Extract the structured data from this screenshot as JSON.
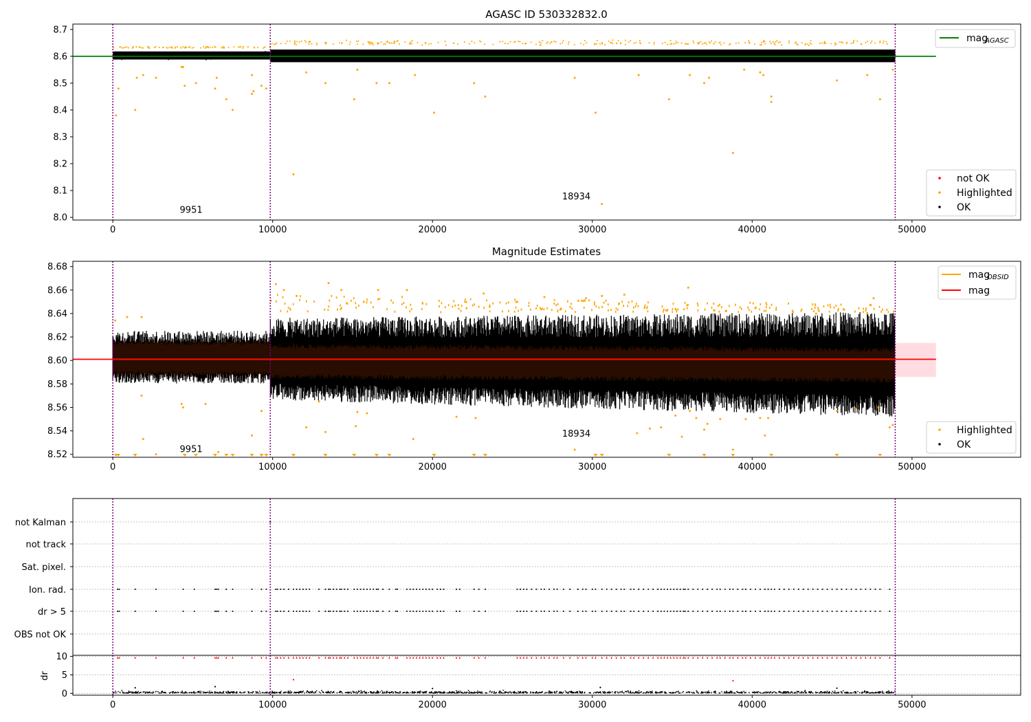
{
  "figure": {
    "colors": {
      "ok": "#000000",
      "highlighted": "#ffa500",
      "not_ok": "#ff0000",
      "agasc_line": "#008000",
      "mag_line": "#ff0000",
      "band_fill": "#ffc0cb",
      "brown": "#2a0e00",
      "purple": "#800080"
    }
  },
  "chart_data": [
    {
      "id": "agasc",
      "type": "scatter",
      "title": "AGASC ID 530332832.0",
      "xlim": [
        -2500,
        56800
      ],
      "ylim": [
        7.99,
        8.72
      ],
      "x_ticks": [
        0,
        10000,
        20000,
        30000,
        40000,
        50000
      ],
      "x_tick_labels": [
        "0",
        "10000",
        "20000",
        "30000",
        "40000",
        "50000"
      ],
      "y_ticks": [
        8.0,
        8.1,
        8.2,
        8.3,
        8.4,
        8.5,
        8.6,
        8.7
      ],
      "y_tick_labels": [
        "8.0",
        "8.1",
        "8.2",
        "8.3",
        "8.4",
        "8.5",
        "8.6",
        "8.7"
      ],
      "obsid_boundaries": [
        0,
        9850,
        48950
      ],
      "annotations": [
        {
          "text": "9951",
          "x": 4900,
          "y": 8.017
        },
        {
          "text": "18934",
          "x": 29000,
          "y": 8.067
        }
      ],
      "reference_line": {
        "y": 8.6,
        "x_range": [
          -2500,
          51500
        ]
      },
      "legend_upper": {
        "label": "mag",
        "subscript": "AGASC",
        "color": "#008000"
      },
      "legend_lower": [
        {
          "label": "not OK",
          "color": "#ff0000"
        },
        {
          "label": "Highlighted",
          "color": "#ffa500"
        },
        {
          "label": "OK",
          "color": "#000000"
        }
      ],
      "series": [
        {
          "name": "Highlighted",
          "color": "#ffa500",
          "points": [
            [
              200,
              8.38
            ],
            [
              350,
              8.48
            ],
            [
              1400,
              8.4
            ],
            [
              1500,
              8.52
            ],
            [
              1900,
              8.53
            ],
            [
              2700,
              8.52
            ],
            [
              4300,
              8.56
            ],
            [
              4400,
              8.56
            ],
            [
              4500,
              8.49
            ],
            [
              5200,
              8.5
            ],
            [
              6400,
              8.48
            ],
            [
              6500,
              8.52
            ],
            [
              7100,
              8.44
            ],
            [
              7500,
              8.4
            ],
            [
              8700,
              8.46
            ],
            [
              8800,
              8.47
            ],
            [
              8700,
              8.53
            ],
            [
              9300,
              8.49
            ],
            [
              9600,
              8.48
            ],
            [
              11300,
              8.16
            ],
            [
              12100,
              8.54
            ],
            [
              13300,
              8.5
            ],
            [
              15100,
              8.44
            ],
            [
              15300,
              8.55
            ],
            [
              16500,
              8.5
            ],
            [
              17300,
              8.5
            ],
            [
              18900,
              8.53
            ],
            [
              20100,
              8.39
            ],
            [
              22600,
              8.5
            ],
            [
              23300,
              8.45
            ],
            [
              28900,
              8.52
            ],
            [
              30200,
              8.39
            ],
            [
              30600,
              8.05
            ],
            [
              32900,
              8.53
            ],
            [
              34800,
              8.44
            ],
            [
              36100,
              8.53
            ],
            [
              37000,
              8.5
            ],
            [
              37300,
              8.52
            ],
            [
              38800,
              8.24
            ],
            [
              39500,
              8.55
            ],
            [
              40500,
              8.54
            ],
            [
              40700,
              8.53
            ],
            [
              41200,
              8.45
            ],
            [
              41200,
              8.43
            ],
            [
              45300,
              8.51
            ],
            [
              47200,
              8.53
            ],
            [
              48000,
              8.44
            ],
            [
              48800,
              8.55
            ]
          ]
        }
      ]
    },
    {
      "id": "estimates",
      "type": "scatter",
      "title": "Magnitude Estimates",
      "xlim": [
        -2500,
        56800
      ],
      "ylim": [
        8.5175,
        8.6845
      ],
      "x_ticks": [
        0,
        10000,
        20000,
        30000,
        40000,
        50000
      ],
      "x_tick_labels": [
        "0",
        "10000",
        "20000",
        "30000",
        "40000",
        "50000"
      ],
      "y_ticks": [
        8.52,
        8.54,
        8.56,
        8.58,
        8.6,
        8.62,
        8.64,
        8.66,
        8.68
      ],
      "y_tick_labels": [
        "8.52",
        "8.54",
        "8.56",
        "8.58",
        "8.60",
        "8.62",
        "8.64",
        "8.66",
        "8.68"
      ],
      "obsid_boundaries": [
        0,
        9850,
        48950
      ],
      "annotations": [
        {
          "text": "9951",
          "x": 4900,
          "y": 8.522
        },
        {
          "text": "18934",
          "x": 29000,
          "y": 8.535
        }
      ],
      "mag_line": {
        "y": 8.601,
        "x_range": [
          -2500,
          51500
        ]
      },
      "mag_band": {
        "y_low": 8.586,
        "y_high": 8.615
      },
      "legend_upper": [
        {
          "label": "mag",
          "subscript": "OBSID",
          "color": "#ffa500"
        },
        {
          "label": "mag",
          "subscript": "",
          "color": "#ff0000"
        }
      ],
      "legend_lower": [
        {
          "label": "Highlighted",
          "color": "#ffa500"
        },
        {
          "label": "OK",
          "color": "#000000"
        }
      ],
      "series": [
        {
          "name": "Highlighted",
          "color": "#ffa500",
          "points": [
            [
              150,
              8.634
            ],
            [
              900,
              8.637
            ],
            [
              1800,
              8.637
            ],
            [
              4300,
              8.563
            ],
            [
              4400,
              8.56
            ],
            [
              1900,
              8.533
            ],
            [
              1800,
              8.57
            ],
            [
              2700,
              8.52
            ],
            [
              5800,
              8.563
            ],
            [
              6600,
              8.522
            ],
            [
              8700,
              8.536
            ],
            [
              9300,
              8.557
            ],
            [
              10200,
              8.665
            ],
            [
              10700,
              8.66
            ],
            [
              11500,
              8.655
            ],
            [
              12100,
              8.543
            ],
            [
              12900,
              8.565
            ],
            [
              13300,
              8.539
            ],
            [
              13500,
              8.666
            ],
            [
              14300,
              8.66
            ],
            [
              15200,
              8.544
            ],
            [
              15300,
              8.556
            ],
            [
              15700,
              8.65
            ],
            [
              15900,
              8.555
            ],
            [
              16600,
              8.66
            ],
            [
              18400,
              8.66
            ],
            [
              18800,
              8.533
            ],
            [
              21500,
              8.552
            ],
            [
              22700,
              8.551
            ],
            [
              23200,
              8.657
            ],
            [
              25300,
              8.65
            ],
            [
              27000,
              8.654
            ],
            [
              28900,
              8.524
            ],
            [
              29600,
              8.653
            ],
            [
              30600,
              8.655
            ],
            [
              32000,
              8.656
            ],
            [
              32800,
              8.538
            ],
            [
              33600,
              8.542
            ],
            [
              34300,
              8.543
            ],
            [
              35200,
              8.553
            ],
            [
              35600,
              8.535
            ],
            [
              36000,
              8.662
            ],
            [
              36100,
              8.557
            ],
            [
              36500,
              8.551
            ],
            [
              37000,
              8.541
            ],
            [
              37200,
              8.546
            ],
            [
              38000,
              8.55
            ],
            [
              38800,
              8.524
            ],
            [
              39600,
              8.55
            ],
            [
              40500,
              8.551
            ],
            [
              40800,
              8.536
            ],
            [
              45300,
              8.557
            ],
            [
              46400,
              8.56
            ],
            [
              47200,
              8.64
            ],
            [
              47600,
              8.653
            ],
            [
              48600,
              8.543
            ],
            [
              48800,
              8.545
            ],
            [
              47900,
              8.56
            ],
            [
              41000,
              8.551
            ],
            [
              44000,
              8.64
            ]
          ]
        }
      ],
      "clipped_markers_x": [
        200,
        350,
        1400,
        4500,
        5200,
        6400,
        7100,
        7500,
        8700,
        9300,
        9600,
        11300,
        13300,
        15100,
        16500,
        17300,
        20100,
        22600,
        23300,
        30200,
        30600,
        34800,
        37000,
        38800,
        41200,
        45300,
        48000
      ]
    },
    {
      "id": "flags",
      "type": "scatter",
      "categories": [
        "not Kalman",
        "not track",
        "Sat. pixel.",
        "Ion. rad.",
        "dr > 5",
        "OBS not OK"
      ],
      "xlim": [
        -2500,
        56800
      ],
      "x_ticks": [
        0,
        10000,
        20000,
        30000,
        40000,
        50000
      ],
      "x_tick_labels": [
        "0",
        "10000",
        "20000",
        "30000",
        "40000",
        "50000"
      ],
      "obsid_boundaries": [
        0,
        9850,
        48950
      ],
      "rows": {
        "not Kalman": [
          9850
        ],
        "Ion. rad.": "flag_x",
        "dr > 5": "flag_x"
      }
    },
    {
      "id": "dr",
      "type": "scatter",
      "ylabel": "dr",
      "ylim": [
        -0.5,
        10.3
      ],
      "y_ticks": [
        0,
        5,
        10
      ],
      "y_tick_labels": [
        "0",
        "5",
        "10"
      ],
      "xlim": [
        -2500,
        56800
      ],
      "x_ticks": [
        0,
        10000,
        20000,
        30000,
        40000,
        50000
      ],
      "x_tick_labels": [
        "0",
        "10000",
        "20000",
        "30000",
        "40000",
        "50000"
      ],
      "obsid_boundaries": [
        0,
        9850,
        48950
      ],
      "outliers_dr": [
        [
          11300,
          3.7
        ],
        [
          38800,
          3.4
        ],
        [
          1400,
          1.5
        ],
        [
          6400,
          1.8
        ],
        [
          30500,
          1.6
        ],
        [
          20000,
          1.3
        ],
        [
          45300,
          1.4
        ]
      ],
      "clipped_x": "flag_x"
    }
  ],
  "flag_x": [
    300,
    400,
    1400,
    2700,
    4400,
    5100,
    6400,
    6500,
    6600,
    7100,
    7500,
    8700,
    9300,
    9600,
    10200,
    10300,
    10500,
    10700,
    11000,
    11300,
    11500,
    11700,
    11900,
    12100,
    12300,
    12900,
    13300,
    13500,
    13600,
    13800,
    14000,
    14200,
    14300,
    14500,
    14700,
    15100,
    15300,
    15500,
    15700,
    15900,
    16100,
    16300,
    16500,
    16600,
    16900,
    17300,
    17700,
    17800,
    18400,
    18600,
    18800,
    19000,
    19200,
    19400,
    19600,
    19800,
    20000,
    20300,
    20500,
    20700,
    21500,
    21700,
    22600,
    22900,
    23300,
    25300,
    25500,
    25700,
    25900,
    26200,
    26500,
    26800,
    27000,
    27300,
    27600,
    27800,
    28200,
    28600,
    29100,
    29400,
    29600,
    30000,
    30200,
    30600,
    30900,
    31200,
    31500,
    31800,
    32000,
    32400,
    32600,
    32900,
    33200,
    33500,
    33800,
    34100,
    34300,
    34500,
    34700,
    34900,
    35100,
    35300,
    35500,
    35700,
    35800,
    36000,
    36300,
    36600,
    36900,
    37200,
    37500,
    37800,
    38000,
    38300,
    38600,
    38800,
    39100,
    39400,
    39600,
    39900,
    40200,
    40500,
    40800,
    41000,
    41200,
    41400,
    41700,
    42000,
    42300,
    42600,
    42900,
    43200,
    43500,
    43800,
    44100,
    44400,
    44700,
    45000,
    45300,
    45600,
    45900,
    46200,
    46500,
    46800,
    47100,
    47400,
    47700,
    48000,
    48600
  ]
}
